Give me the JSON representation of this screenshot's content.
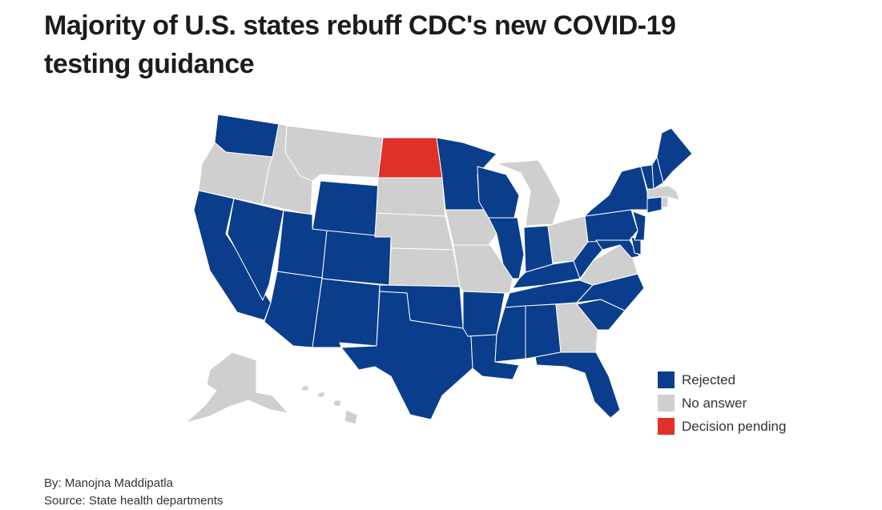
{
  "title": "Majority of U.S. states rebuff CDC's new COVID-19 testing guidance",
  "colors": {
    "rejected": "#0a3e8c",
    "no_answer": "#cfcfcf",
    "pending": "#e0302a"
  },
  "legend": [
    {
      "label": "Rejected",
      "status": "rejected"
    },
    {
      "label": "No answer",
      "status": "no_answer"
    },
    {
      "label": "Decision pending",
      "status": "pending"
    }
  ],
  "states": {
    "WA": "rejected",
    "OR": "no_answer",
    "CA": "rejected",
    "NV": "rejected",
    "ID": "no_answer",
    "MT": "no_answer",
    "WY": "rejected",
    "UT": "rejected",
    "AZ": "rejected",
    "CO": "rejected",
    "NM": "rejected",
    "ND": "pending",
    "SD": "no_answer",
    "NE": "no_answer",
    "KS": "no_answer",
    "OK": "rejected",
    "TX": "rejected",
    "MN": "rejected",
    "IA": "no_answer",
    "MO": "no_answer",
    "AR": "rejected",
    "LA": "rejected",
    "WI": "rejected",
    "IL": "rejected",
    "MI": "no_answer",
    "IN": "rejected",
    "OH": "no_answer",
    "KY": "rejected",
    "TN": "rejected",
    "MS": "rejected",
    "AL": "rejected",
    "GA": "no_answer",
    "FL": "rejected",
    "SC": "rejected",
    "NC": "rejected",
    "VA": "no_answer",
    "WV": "rejected",
    "PA": "rejected",
    "NY": "rejected",
    "NJ": "rejected",
    "DE": "rejected",
    "MD": "rejected",
    "CT": "rejected",
    "RI": "no_answer",
    "MA": "no_answer",
    "VT": "rejected",
    "NH": "rejected",
    "ME": "rejected",
    "AK": "no_answer",
    "HI": "no_answer"
  },
  "credits": {
    "byline": "By: Manojna Maddipatla",
    "source": "Source: State health departments"
  }
}
